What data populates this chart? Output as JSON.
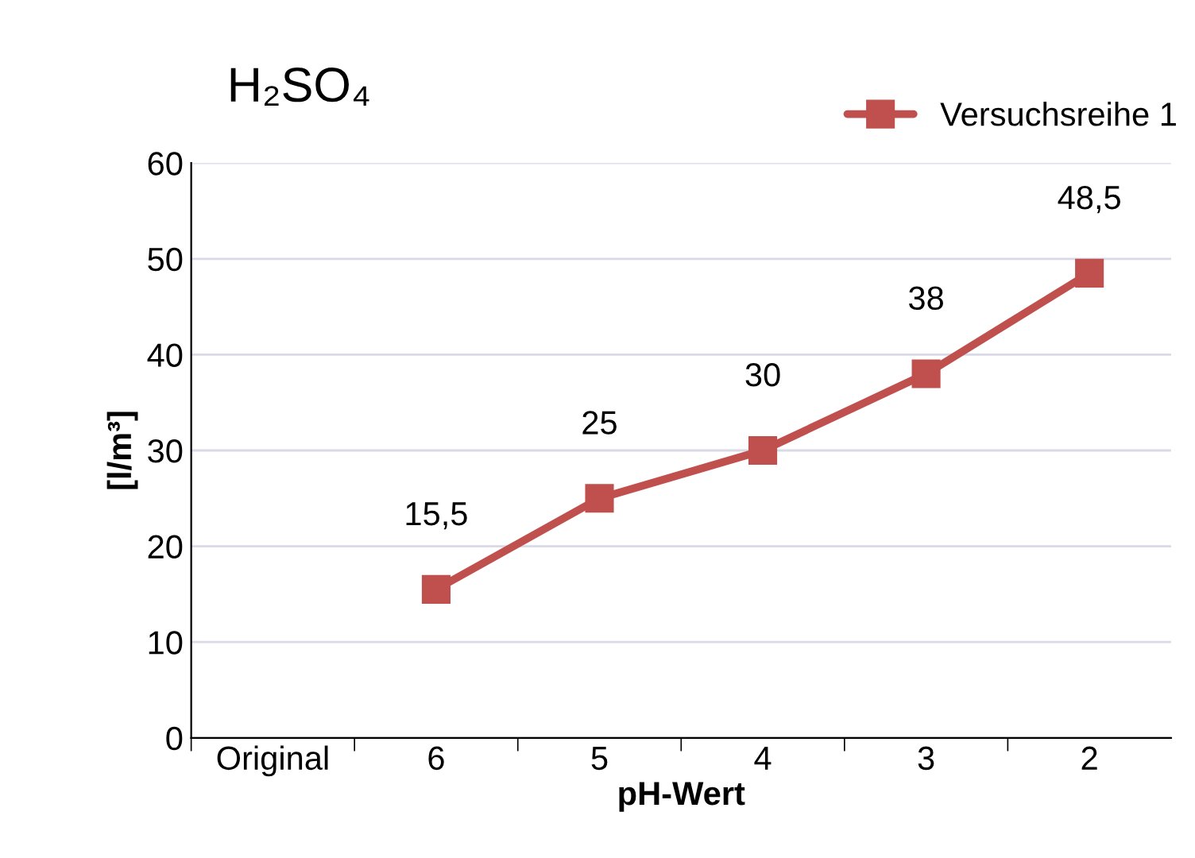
{
  "chart_data": {
    "type": "line",
    "title": "H₂SO₄",
    "xlabel": "pH-Wert",
    "ylabel": "[l/m³]",
    "categories": [
      "Original",
      "6",
      "5",
      "4",
      "3",
      "2"
    ],
    "series": [
      {
        "name": "Versuchsreihe 1",
        "color": "#c0504d",
        "values": [
          null,
          15.5,
          25,
          30,
          38,
          48.5
        ],
        "value_labels": [
          null,
          "15,5",
          "25",
          "30",
          "38",
          "48,5"
        ]
      }
    ],
    "ylim": [
      0,
      60
    ],
    "yticks": [
      0,
      10,
      20,
      30,
      40,
      50,
      60
    ],
    "grid": "y",
    "legend": "top right",
    "marker": "square",
    "line_style": "solid"
  }
}
